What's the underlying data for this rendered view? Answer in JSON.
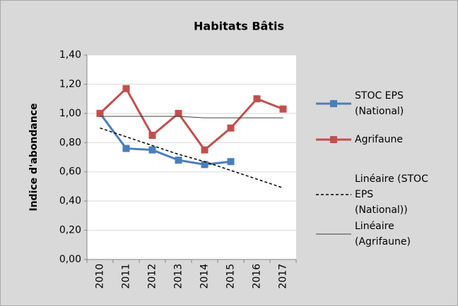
{
  "chart_data": {
    "type": "line",
    "title": "Habitats Bâtis",
    "y_label": "Indice d'abondance",
    "categories": [
      "2010",
      "2011",
      "2012",
      "2013",
      "2014",
      "2015",
      "2016",
      "2017"
    ],
    "series": [
      {
        "name": "STOC EPS (National)",
        "color": "#4a7ebb",
        "marker": "square",
        "values": [
          1.0,
          0.76,
          0.75,
          0.68,
          0.65,
          0.67,
          null,
          null
        ]
      },
      {
        "name": "Agrifaune",
        "color": "#c0504d",
        "marker": "square",
        "values": [
          1.0,
          1.17,
          0.85,
          1.0,
          0.75,
          0.9,
          1.1,
          1.03
        ]
      },
      {
        "name": "Linéaire (STOC EPS (National))",
        "color": "#000000",
        "dash": true,
        "values": [
          0.9,
          0.84,
          0.78,
          0.72,
          0.67,
          0.61,
          0.55,
          0.49
        ]
      },
      {
        "name": "Linéaire (Agrifaune)",
        "color": "#404040",
        "dash": false,
        "values": [
          0.98,
          0.98,
          0.98,
          0.98,
          0.97,
          0.97,
          0.97,
          0.97
        ]
      }
    ],
    "ylim": [
      0,
      1.4
    ],
    "yticks": [
      {
        "value": 0,
        "label": "0,00"
      },
      {
        "value": 0.2,
        "label": "0,20"
      },
      {
        "value": 0.4,
        "label": "0,40"
      },
      {
        "value": 0.6,
        "label": "0,60"
      },
      {
        "value": 0.8,
        "label": "0,80"
      },
      {
        "value": 1.0,
        "label": "1,00"
      },
      {
        "value": 1.2,
        "label": "1,20"
      },
      {
        "value": 1.4,
        "label": "1,40"
      }
    ],
    "grid": true,
    "legend": "right"
  }
}
